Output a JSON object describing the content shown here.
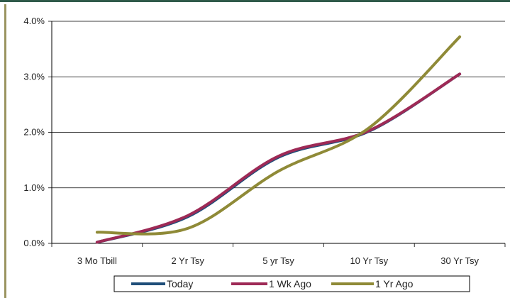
{
  "chart_data": {
    "type": "line",
    "categories": [
      "3 Mo Tbill",
      "2 Yr Tsy",
      "5 yr Tsy",
      "10 Yr Tsy",
      "30 Yr Tsy"
    ],
    "y_tick_labels": [
      "0.0%",
      "1.0%",
      "2.0%",
      "3.0%",
      "4.0%"
    ],
    "ylim": [
      0,
      4
    ],
    "grid": true,
    "legend_position": "bottom",
    "series": [
      {
        "name": "Today",
        "color": "#1f4e79",
        "values": [
          0.02,
          0.48,
          1.55,
          2.02,
          3.05
        ]
      },
      {
        "name": "1 Wk Ago",
        "color": "#9e2a56",
        "values": [
          0.02,
          0.5,
          1.57,
          2.03,
          3.05
        ]
      },
      {
        "name": "1 Yr Ago",
        "color": "#8f8a37",
        "values": [
          0.2,
          0.27,
          1.3,
          2.08,
          3.72
        ]
      }
    ]
  }
}
